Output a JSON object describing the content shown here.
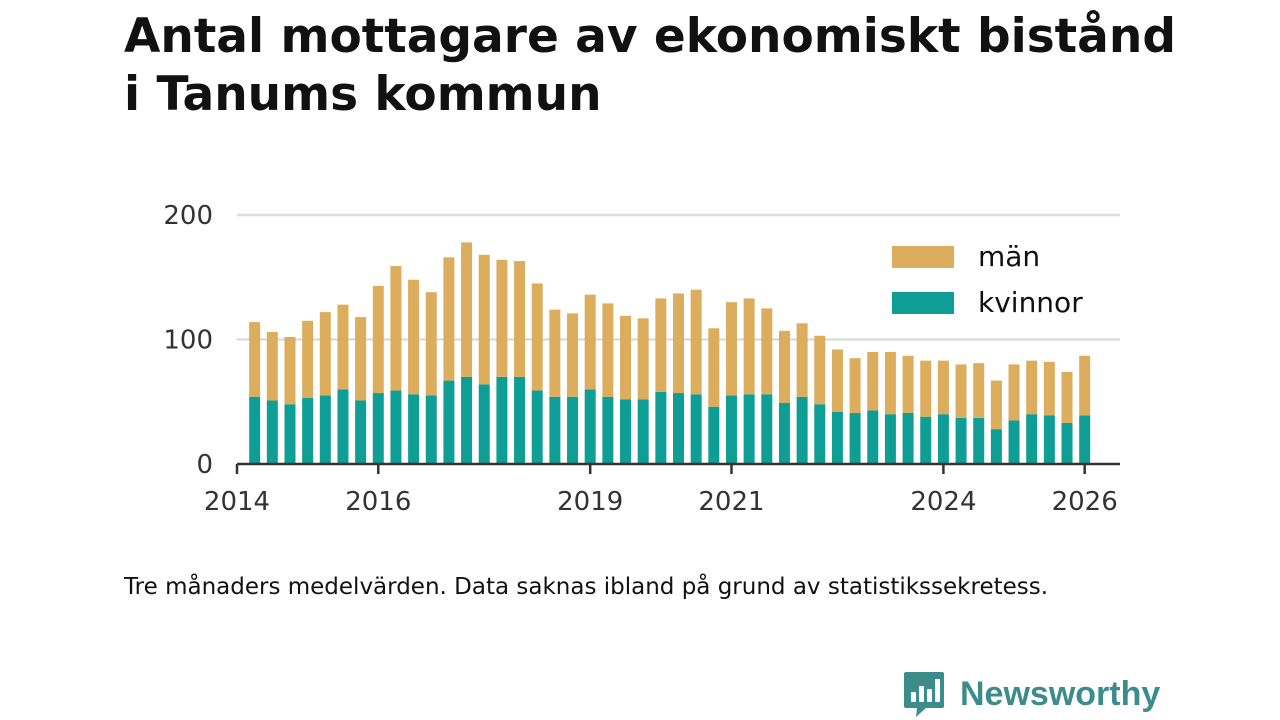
{
  "title_lines": [
    "Antal mottagare av ekonomiskt bistånd",
    "i Tanums kommun"
  ],
  "note": "Tre månaders medelvärden. Data saknas ibland på grund av statistikssekretess.",
  "brand": {
    "name": "Newsworthy",
    "color": "#3d8c8c"
  },
  "colors": {
    "man": "#dbad5d",
    "kvinnor": "#0f9e96",
    "grid": "#dddddd",
    "axis": "#333333"
  },
  "chart_data": {
    "type": "bar",
    "stacked": true,
    "title": "Antal mottagare av ekonomiskt bistånd i Tanums kommun",
    "xlabel": "",
    "ylabel": "",
    "ylim": [
      0,
      200
    ],
    "yticks": [
      0,
      100,
      200
    ],
    "xlim": [
      2014.0,
      2026.5
    ],
    "xticks": [
      2014,
      2016,
      2019,
      2021,
      2024,
      2026
    ],
    "legend_position": "top-right",
    "x": [
      2014.25,
      2014.5,
      2014.75,
      2015.0,
      2015.25,
      2015.5,
      2015.75,
      2016.0,
      2016.25,
      2016.5,
      2016.75,
      2017.0,
      2017.25,
      2017.5,
      2017.75,
      2018.0,
      2018.25,
      2018.5,
      2018.75,
      2019.0,
      2019.25,
      2019.5,
      2019.75,
      2020.0,
      2020.25,
      2020.5,
      2020.75,
      2021.0,
      2021.25,
      2021.5,
      2021.75,
      2022.0,
      2022.25,
      2022.5,
      2022.75,
      2023.0,
      2023.25,
      2023.5,
      2023.75,
      2024.0,
      2024.25,
      2024.5,
      2024.75,
      2025.0,
      2025.25,
      2025.5,
      2025.75,
      2026.0
    ],
    "series": [
      {
        "name": "kvinnor",
        "values": [
          54,
          51,
          48,
          53,
          55,
          60,
          51,
          57,
          59,
          56,
          55,
          67,
          70,
          64,
          70,
          70,
          59,
          54,
          54,
          60,
          54,
          52,
          52,
          58,
          57,
          56,
          46,
          55,
          56,
          56,
          49,
          54,
          48,
          42,
          41,
          43,
          40,
          41,
          38,
          40,
          37,
          37,
          28,
          35,
          40,
          39,
          33,
          39
        ]
      },
      {
        "name": "män",
        "values": [
          60,
          55,
          54,
          62,
          67,
          68,
          67,
          86,
          100,
          92,
          83,
          99,
          108,
          104,
          94,
          93,
          86,
          70,
          67,
          76,
          75,
          67,
          65,
          75,
          80,
          84,
          63,
          75,
          77,
          69,
          58,
          59,
          55,
          50,
          44,
          47,
          50,
          46,
          45,
          43,
          43,
          44,
          39,
          45,
          43,
          43,
          41,
          48
        ]
      }
    ],
    "legend": [
      {
        "label": "män",
        "series": "män"
      },
      {
        "label": "kvinnor",
        "series": "kvinnor"
      }
    ]
  }
}
